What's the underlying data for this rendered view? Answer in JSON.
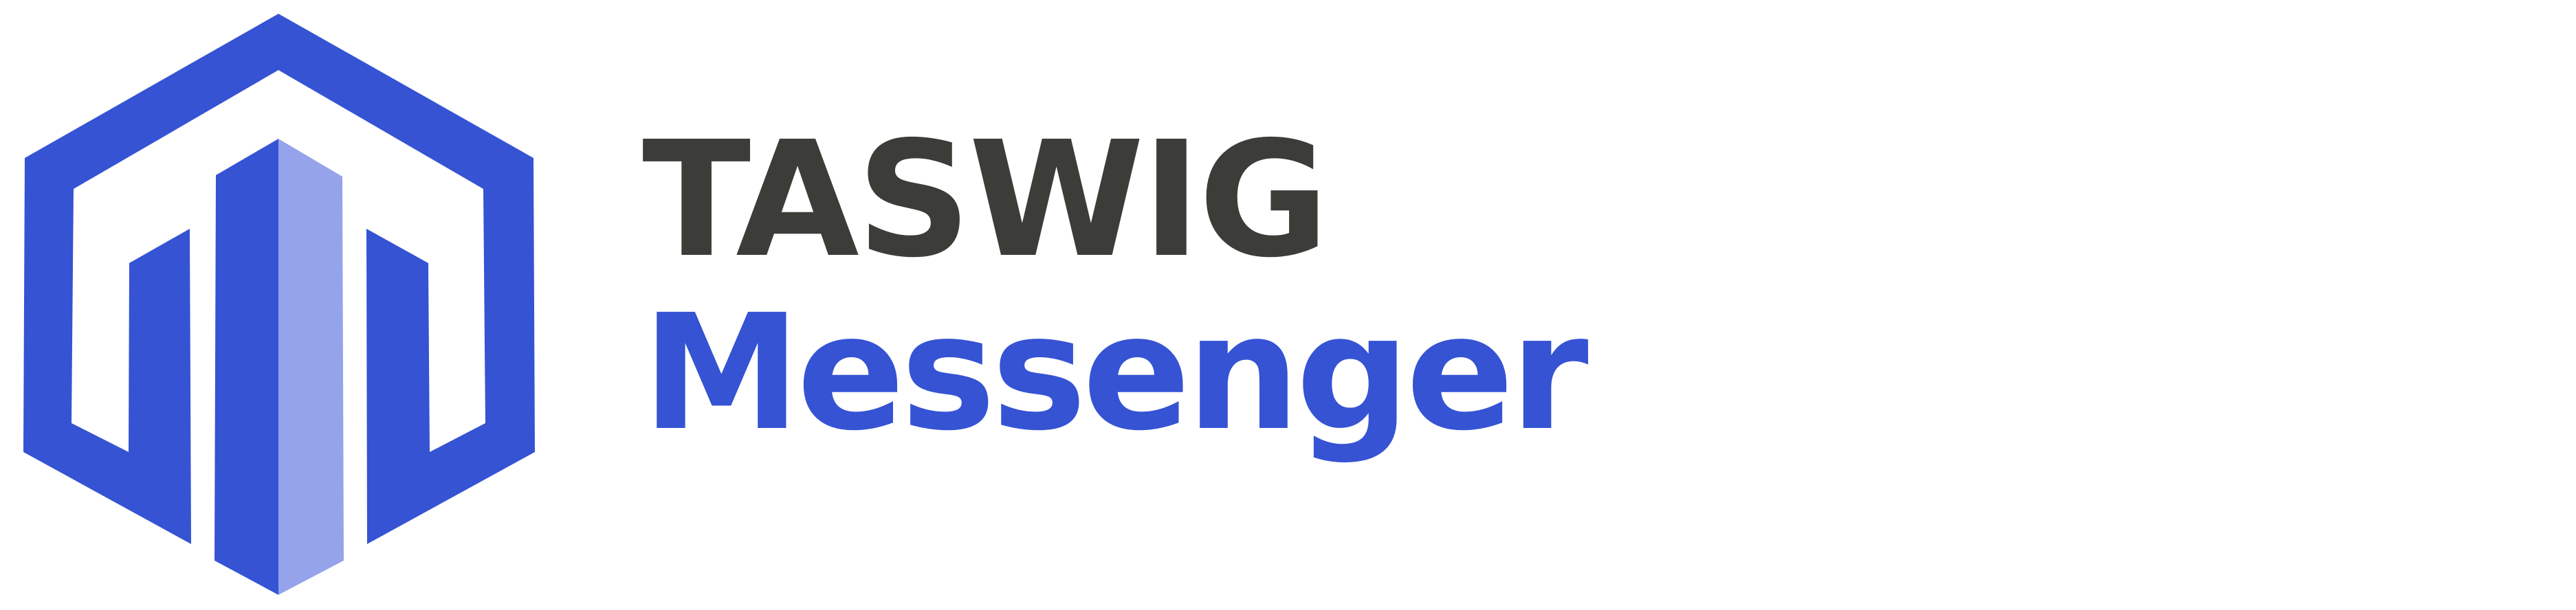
{
  "logo": {
    "brand_name": "TASWIG",
    "product_name": "Messenger",
    "icon": "hexagon-building-icon",
    "colors": {
      "primary_blue": "#3553d3",
      "light_blue": "#95a4ea",
      "dark_text": "#3c3d38",
      "background": "#ffffff"
    }
  }
}
